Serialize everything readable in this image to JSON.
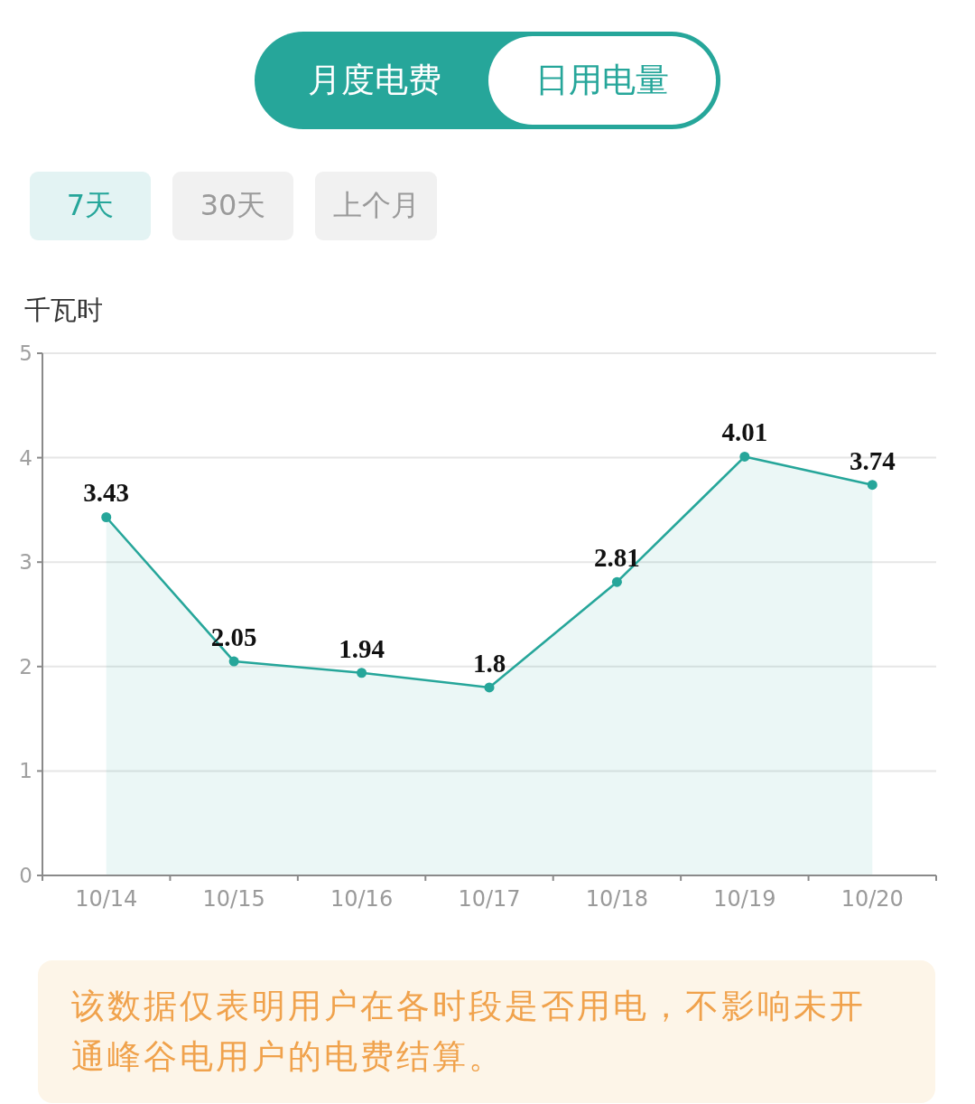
{
  "chart_data": {
    "type": "area",
    "ylabel": "千瓦时",
    "categories": [
      "10/14",
      "10/15",
      "10/16",
      "10/17",
      "10/18",
      "10/19",
      "10/20"
    ],
    "values": [
      3.43,
      2.05,
      1.94,
      1.8,
      2.81,
      4.01,
      3.74
    ],
    "color": "#26a69a",
    "ylim": [
      0,
      5
    ],
    "yticks": [
      0,
      1,
      2,
      3,
      4,
      5
    ],
    "grid": "y",
    "marker": "circle",
    "data_labels": true,
    "annotations": [
      "月度电费",
      "日用电量",
      "7天",
      "30天",
      "上个月",
      "该数据仅表明用户在各时段是否用电，不影响未开通峰谷电用户的电费结算。"
    ]
  }
}
